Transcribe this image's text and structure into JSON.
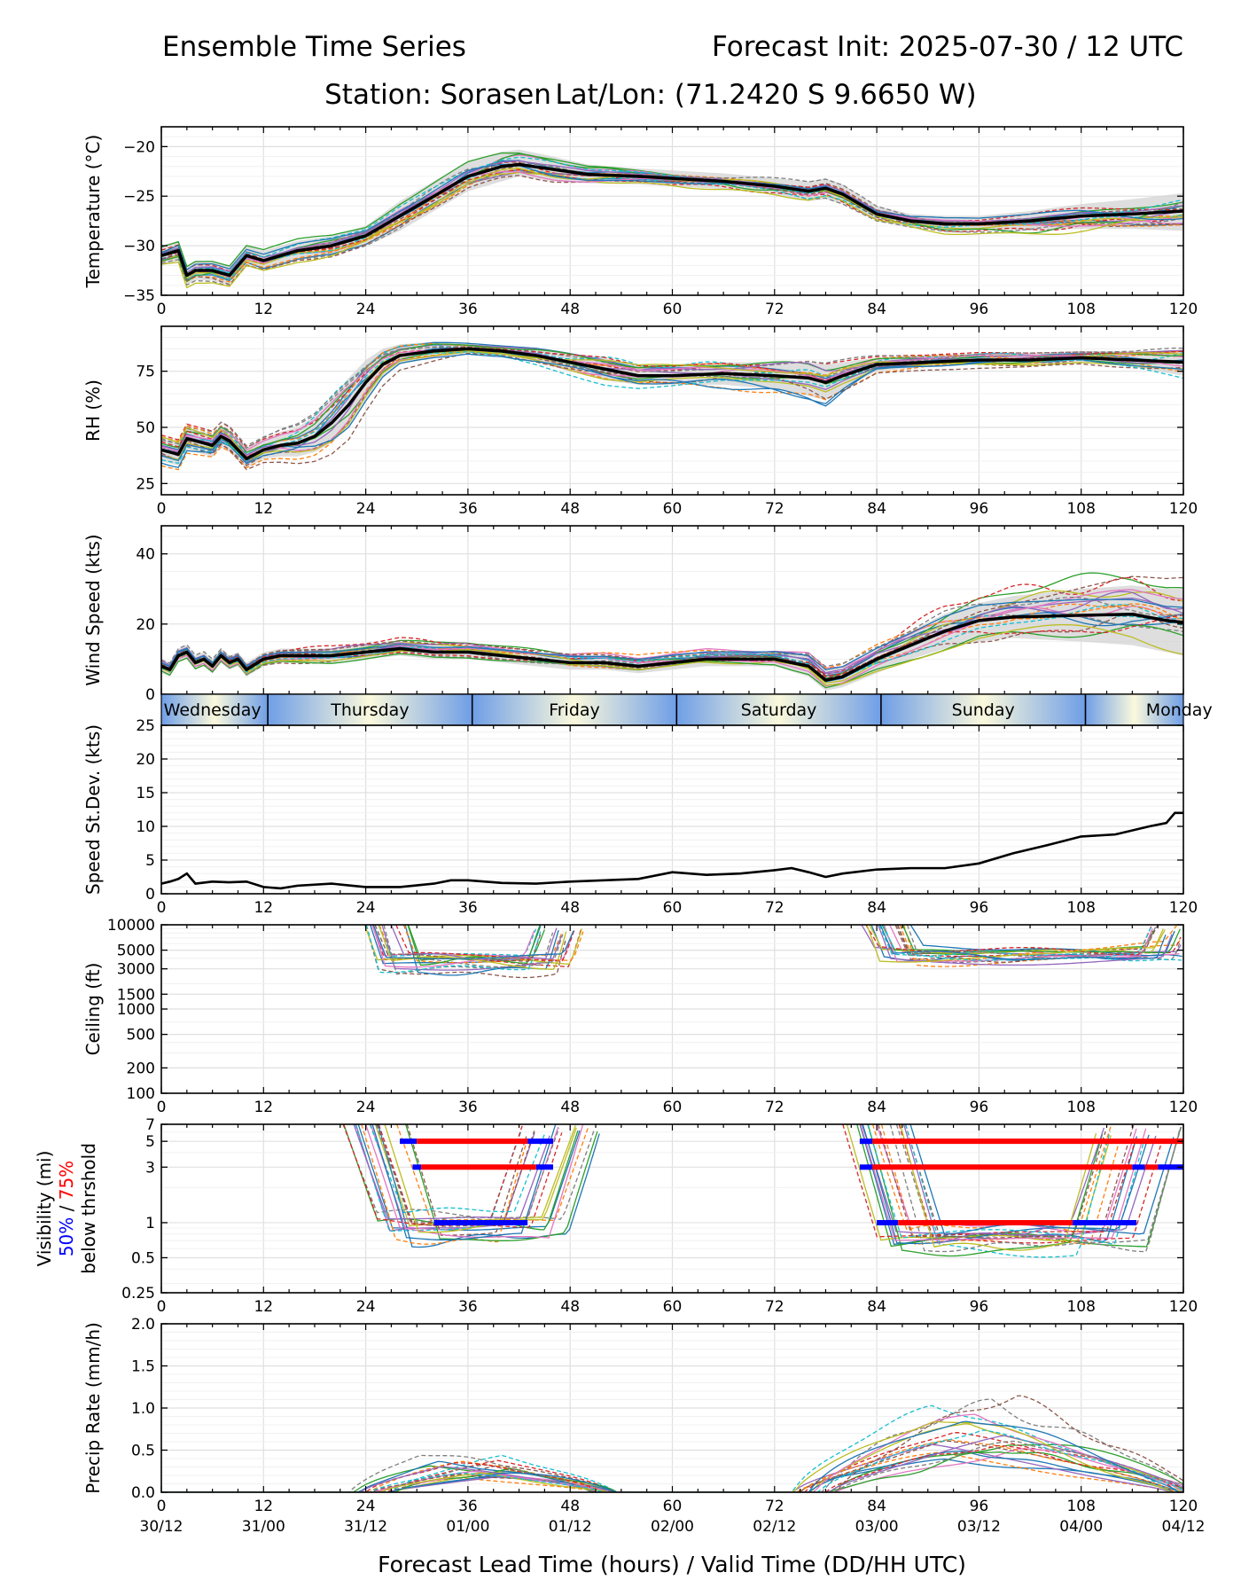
{
  "header": {
    "title_left": "Ensemble Time Series",
    "title_right": "Forecast Init: 2025-07-30 / 12 UTC",
    "station": "Station: Sorasen",
    "latlon": "Lat/Lon: (71.2420 S 9.6650 W)"
  },
  "xaxis": {
    "range": [
      0,
      120
    ],
    "ticks": [
      "0",
      "12",
      "24",
      "36",
      "48",
      "60",
      "72",
      "84",
      "96",
      "108",
      "120"
    ],
    "valid_times": [
      "30/12",
      "31/00",
      "31/12",
      "01/00",
      "01/12",
      "02/00",
      "02/12",
      "03/00",
      "03/12",
      "04/00",
      "04/12"
    ],
    "label": "Forecast Lead Time (hours) / Valid Time (DD/HH UTC)"
  },
  "day_band": {
    "days": [
      "Wednesday",
      "Thursday",
      "Friday",
      "Saturday",
      "Sunday",
      "Monday"
    ],
    "boundaries_hours": [
      12.5,
      36.5,
      60.5,
      84.5,
      108.5
    ],
    "colors": {
      "light": "#fbf9dc",
      "dark": "#6f9ee6"
    }
  },
  "legend_text": {
    "vis_ylabel_line1": "Visibility (mi)",
    "vis_pct_50": "50%",
    "vis_sep": " / ",
    "vis_pct_75": "75%",
    "vis_ylabel_line3": "below thrshold",
    "color_50": "#0000ff",
    "color_75": "#ff0000"
  },
  "chart_data": [
    {
      "type": "line",
      "panel": "temperature",
      "ylabel": "Temperature (°C)",
      "ylim": [
        -35,
        -18
      ],
      "yticks": [
        -35,
        -30,
        -25,
        -20
      ],
      "ytick_labels": [
        "−35",
        "−30",
        "−25",
        "−20"
      ],
      "grid": true,
      "x": [
        0,
        2,
        3,
        4,
        6,
        8,
        10,
        12,
        16,
        20,
        24,
        28,
        32,
        36,
        40,
        42,
        46,
        50,
        56,
        60,
        66,
        72,
        76,
        78,
        80,
        84,
        88,
        92,
        96,
        102,
        108,
        114,
        120
      ],
      "mean": [
        -31,
        -30.5,
        -33,
        -32.5,
        -32.5,
        -33,
        -31,
        -31.5,
        -30.5,
        -30,
        -29,
        -27,
        -25,
        -23,
        -22,
        -21.8,
        -22.3,
        -22.8,
        -23,
        -23.2,
        -23.5,
        -24,
        -24.5,
        -24.2,
        -24.8,
        -26.8,
        -27.5,
        -27.8,
        -27.8,
        -27.5,
        -27,
        -26.8,
        -26.5
      ],
      "spread_low": [
        -32,
        -31.5,
        -34,
        -33.5,
        -33.5,
        -34,
        -32,
        -32.5,
        -31.5,
        -31,
        -30,
        -28.5,
        -26.5,
        -24.5,
        -23.5,
        -23,
        -23.5,
        -23.7,
        -23.8,
        -24,
        -24.3,
        -24.8,
        -25.5,
        -25.3,
        -25.8,
        -27.5,
        -28.2,
        -28.5,
        -28.5,
        -28.5,
        -28.3,
        -28.3,
        -28.5
      ],
      "spread_high": [
        -30,
        -29.5,
        -32,
        -31.5,
        -31.5,
        -32,
        -30,
        -30.5,
        -29.5,
        -29,
        -28,
        -25.5,
        -23.5,
        -21.5,
        -20.5,
        -20.3,
        -21,
        -21.8,
        -22.2,
        -22.4,
        -22.7,
        -23.2,
        -23.5,
        -23.2,
        -23.8,
        -26,
        -26.8,
        -27,
        -27,
        -26.5,
        -25.8,
        -25.3,
        -24.7
      ],
      "n_members": 21,
      "member_amplitude": 2.2
    },
    {
      "type": "line",
      "panel": "relative_humidity",
      "ylabel": "RH (%)",
      "ylim": [
        20,
        95
      ],
      "yticks": [
        25,
        50,
        75
      ],
      "ytick_labels": [
        "25",
        "50",
        "75"
      ],
      "grid": true,
      "x": [
        0,
        2,
        3,
        4,
        6,
        7,
        8,
        10,
        12,
        14,
        16,
        18,
        20,
        22,
        24,
        26,
        28,
        32,
        36,
        40,
        44,
        48,
        52,
        56,
        60,
        66,
        72,
        76,
        78,
        80,
        84,
        90,
        96,
        102,
        108,
        114,
        120
      ],
      "mean": [
        40,
        38,
        45,
        44,
        42,
        46,
        44,
        36,
        40,
        42,
        43,
        46,
        52,
        60,
        70,
        78,
        82,
        84,
        85,
        84,
        82,
        79,
        76,
        73,
        73,
        74,
        73,
        72,
        70,
        73,
        78,
        79,
        80,
        80,
        81,
        80,
        79
      ],
      "spread_low": [
        35,
        33,
        40,
        39,
        37,
        41,
        39,
        32,
        36,
        37,
        37,
        39,
        43,
        50,
        62,
        72,
        78,
        81,
        83,
        82,
        79,
        75,
        71,
        69,
        69,
        69,
        67,
        64,
        62,
        67,
        75,
        77,
        78,
        78,
        79,
        77,
        73
      ],
      "spread_high": [
        45,
        43,
        50,
        49,
        47,
        51,
        49,
        41,
        45,
        48,
        50,
        55,
        63,
        72,
        80,
        85,
        87,
        88,
        87,
        86,
        85,
        83,
        81,
        78,
        78,
        79,
        79,
        79,
        78,
        79,
        81,
        82,
        83,
        83,
        84,
        84,
        84
      ],
      "n_members": 21,
      "member_amplitude": 6
    },
    {
      "type": "line",
      "panel": "wind_speed",
      "ylabel": "Wind Speed (kts)",
      "ylim": [
        0,
        48
      ],
      "yticks": [
        0,
        20,
        40
      ],
      "ytick_labels": [
        "0",
        "20",
        "40"
      ],
      "grid": true,
      "x": [
        0,
        1,
        2,
        3,
        4,
        5,
        6,
        7,
        8,
        9,
        10,
        12,
        14,
        18,
        20,
        24,
        28,
        32,
        36,
        40,
        44,
        48,
        52,
        56,
        60,
        64,
        68,
        72,
        76,
        78,
        80,
        84,
        88,
        92,
        96,
        100,
        108,
        114,
        118,
        120
      ],
      "mean": [
        8,
        7,
        11,
        12,
        9,
        10,
        8,
        11,
        9,
        10,
        7,
        10,
        11,
        11,
        11,
        12,
        13,
        12,
        12,
        11,
        10,
        9,
        9,
        8,
        9,
        10,
        10,
        10,
        8,
        4,
        5,
        10,
        14,
        18,
        21,
        22,
        22.5,
        22.8,
        21,
        20.5
      ],
      "spread_low": [
        6,
        5,
        9,
        10,
        7,
        8,
        6,
        9,
        7,
        8,
        5,
        8,
        9,
        9,
        9,
        10,
        11,
        10,
        10,
        9,
        8,
        7,
        7,
        6,
        7,
        8,
        8,
        8,
        5,
        1,
        2,
        6,
        10,
        13,
        15,
        16,
        15,
        14,
        12,
        11
      ],
      "spread_high": [
        10,
        9,
        13,
        14,
        11,
        12,
        10,
        13,
        11,
        12,
        9,
        12,
        13,
        13,
        13,
        14,
        15,
        14,
        14,
        13,
        12,
        11,
        11,
        10,
        11,
        12,
        12,
        12,
        11,
        7,
        8,
        13,
        18,
        23,
        26,
        28,
        30,
        31,
        30,
        30
      ],
      "n_members": 21,
      "member_amplitude": 4
    },
    {
      "type": "line",
      "panel": "speed_stdev",
      "ylabel": "Speed St.Dev. (kts)",
      "ylim": [
        0,
        25
      ],
      "yticks": [
        0,
        5,
        10,
        15,
        20,
        25
      ],
      "ytick_labels": [
        "0",
        "5",
        "10",
        "15",
        "20",
        "25"
      ],
      "grid": true,
      "x": [
        0,
        1,
        2,
        3,
        4,
        6,
        8,
        10,
        12,
        14,
        16,
        20,
        24,
        28,
        32,
        34,
        36,
        40,
        44,
        48,
        52,
        56,
        60,
        64,
        68,
        72,
        74,
        76,
        78,
        80,
        84,
        88,
        92,
        96,
        100,
        104,
        108,
        112,
        116,
        118,
        119,
        120
      ],
      "y": [
        1.5,
        1.8,
        2.2,
        3,
        1.5,
        1.8,
        1.7,
        1.8,
        1,
        0.8,
        1.2,
        1.5,
        1,
        1,
        1.5,
        2,
        2,
        1.6,
        1.5,
        1.8,
        2,
        2.2,
        3.2,
        2.8,
        3,
        3.5,
        3.8,
        3.2,
        2.5,
        3,
        3.6,
        3.8,
        3.8,
        4.5,
        6,
        7.2,
        8.5,
        8.8,
        10,
        10.5,
        12,
        12
      ]
    },
    {
      "type": "line",
      "panel": "ceiling",
      "ylabel": "Ceiling (ft)",
      "yscale": "log",
      "ylim": [
        100,
        10000
      ],
      "yticks": [
        100,
        200,
        500,
        1000,
        1500,
        3000,
        5000,
        10000
      ],
      "ytick_labels": [
        "100",
        "200",
        "500",
        "1000",
        "1500",
        "3000",
        "5000",
        "10000"
      ],
      "grid": true,
      "cloud_episodes": [
        {
          "start_hour": 23,
          "end_hour": 50,
          "min_ft": 2200,
          "typical_ft": 3500
        },
        {
          "start_hour": 82,
          "end_hour": 120,
          "min_ft": 2400,
          "typical_ft": 4500
        }
      ],
      "n_members": 21
    },
    {
      "type": "line",
      "panel": "visibility",
      "ylabel": "Visibility (mi) 50% / 75% below thrshold",
      "yscale": "log",
      "ylim": [
        0.25,
        7
      ],
      "yticks": [
        0.25,
        0.5,
        1,
        3,
        5,
        7
      ],
      "ytick_labels": [
        "0.25",
        "0.5",
        "1",
        "3",
        "5",
        "7"
      ],
      "grid": true,
      "fog_episodes": [
        {
          "start_hour": 21,
          "end_hour": 52,
          "min_mi": 0.6
        },
        {
          "start_hour": 80,
          "end_hour": 120,
          "min_mi": 0.5
        }
      ],
      "threshold_bars": [
        {
          "threshold": 5,
          "color": "blue",
          "segments": [
            [
              28,
              30
            ],
            [
              43,
              46
            ]
          ]
        },
        {
          "threshold": 5,
          "color": "red",
          "segments": [
            [
              30,
              43
            ]
          ]
        },
        {
          "threshold": 3,
          "color": "blue",
          "segments": [
            [
              29.5,
              30.5
            ],
            [
              44,
              46
            ]
          ]
        },
        {
          "threshold": 3,
          "color": "red",
          "segments": [
            [
              30.5,
              44
            ]
          ]
        },
        {
          "threshold": 1,
          "color": "blue",
          "segments": [
            [
              32,
              43
            ]
          ]
        },
        {
          "threshold": 5,
          "color": "blue",
          "segments": [
            [
              82,
              83.5
            ]
          ]
        },
        {
          "threshold": 5,
          "color": "red",
          "segments": [
            [
              83.5,
              120
            ]
          ]
        },
        {
          "threshold": 3,
          "color": "blue",
          "segments": [
            [
              82,
              83.5
            ],
            [
              114,
              115.5
            ],
            [
              117,
              120
            ]
          ]
        },
        {
          "threshold": 3,
          "color": "red",
          "segments": [
            [
              83.5,
              114
            ],
            [
              115.5,
              117
            ]
          ]
        },
        {
          "threshold": 1,
          "color": "blue",
          "segments": [
            [
              84,
              86.5
            ],
            [
              107,
              114.5
            ]
          ]
        },
        {
          "threshold": 1,
          "color": "red",
          "segments": [
            [
              86.5,
              107
            ]
          ]
        }
      ],
      "n_members": 21
    },
    {
      "type": "line",
      "panel": "precip_rate",
      "ylabel": "Precip Rate (mm/h)",
      "ylim": [
        0,
        2
      ],
      "yticks": [
        0,
        0.5,
        1,
        1.5,
        2
      ],
      "ytick_labels": [
        "0.0",
        "0.5",
        "1.0",
        "1.5",
        "2.0"
      ],
      "grid": true,
      "rain_episodes": [
        {
          "start_hour": 25,
          "end_hour": 52,
          "peak_hour": 36,
          "peak": 0.3
        },
        {
          "start_hour": 77,
          "end_hour": 120,
          "peak_hour": 96,
          "peak": 0.75
        }
      ],
      "n_members": 21
    }
  ]
}
